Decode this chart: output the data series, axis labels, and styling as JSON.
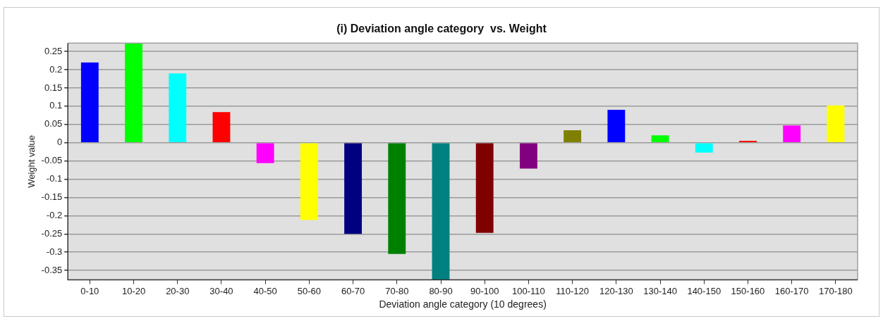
{
  "chart_data": {
    "type": "bar",
    "title": "(i) Deviation angle category  vs. Weight",
    "xlabel": "Deviation angle category (10 degrees)",
    "ylabel": "Weight value",
    "categories": [
      "0-10",
      "10-20",
      "20-30",
      "30-40",
      "40-50",
      "50-60",
      "60-70",
      "70-80",
      "80-90",
      "90-100",
      "100-110",
      "110-120",
      "120-130",
      "130-140",
      "140-150",
      "150-160",
      "160-170",
      "170-180"
    ],
    "values": [
      0.22,
      0.273,
      0.19,
      0.084,
      -0.056,
      -0.212,
      -0.25,
      -0.305,
      -0.376,
      -0.247,
      -0.071,
      0.034,
      0.09,
      0.02,
      -0.027,
      0.005,
      0.047,
      0.102
    ],
    "colors": [
      "#0000ff",
      "#00ff00",
      "#00ffff",
      "#ff0000",
      "#ff00ff",
      "#ffff00",
      "#000080",
      "#008000",
      "#008080",
      "#800000",
      "#800080",
      "#808000",
      "#0000ff",
      "#00ff00",
      "#00ffff",
      "#ff0000",
      "#ff00ff",
      "#ffff00"
    ],
    "ylim": [
      -0.376,
      0.273
    ],
    "yticks": [
      -0.35,
      -0.3,
      -0.25,
      -0.2,
      -0.15,
      -0.1,
      -0.05,
      0,
      0.05,
      0.1,
      0.15,
      0.2,
      0.25
    ],
    "grid": "y"
  }
}
